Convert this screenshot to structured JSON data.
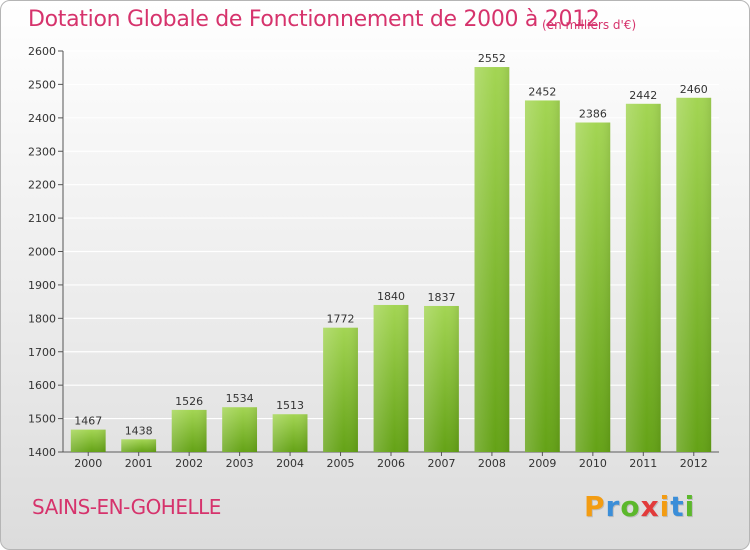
{
  "chart_data": {
    "type": "bar",
    "title": "Dotation Globale de Fonctionnement de 2000 à 2012",
    "subtitle": "(en milliers d'€)",
    "categories": [
      "2000",
      "2001",
      "2002",
      "2003",
      "2004",
      "2005",
      "2006",
      "2007",
      "2008",
      "2009",
      "2010",
      "2011",
      "2012"
    ],
    "values": [
      1467,
      1438,
      1526,
      1534,
      1513,
      1772,
      1840,
      1837,
      2552,
      2452,
      2386,
      2442,
      2460
    ],
    "ylim": [
      1400,
      2600
    ],
    "yticks": [
      1400,
      1500,
      1600,
      1700,
      1800,
      1900,
      2000,
      2100,
      2200,
      2300,
      2400,
      2500,
      2600
    ],
    "grid": true,
    "xlabel": "",
    "ylabel": "",
    "colors": {
      "bar_top": "#a3d553",
      "bar_bottom": "#64a216",
      "grid": "#ffffff",
      "title": "#d6336c"
    }
  },
  "commune": "SAINS-EN-GOHELLE",
  "logo": {
    "letters": [
      "P",
      "r",
      "o",
      "x",
      "i",
      "t",
      "i"
    ],
    "colors": [
      "#f39c12",
      "#3b8ed8",
      "#5cb82c",
      "#e23b3b",
      "#f39c12",
      "#3b8ed8",
      "#5cb82c"
    ]
  }
}
